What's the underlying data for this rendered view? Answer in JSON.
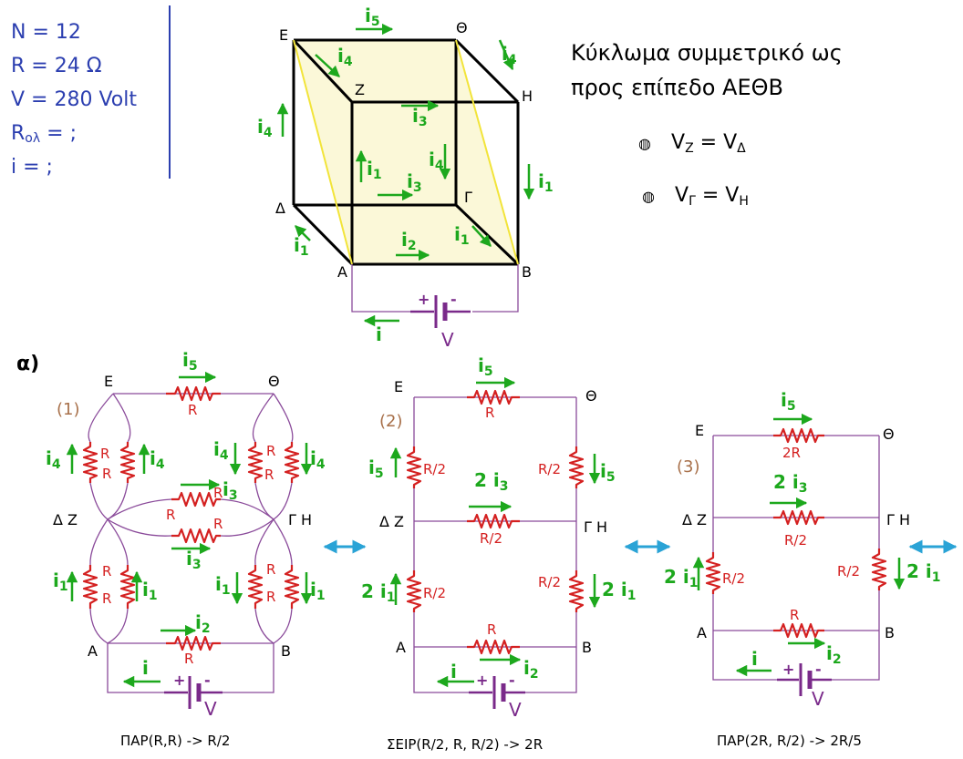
{
  "given": {
    "n": "N = 12",
    "r": "R = 24 Ω",
    "v": "V = 280 Volt",
    "rol_prefix": "R",
    "rol_sub": "ολ",
    "rol_suffix": " = ;",
    "i": "i = ;"
  },
  "symmetry": {
    "line1": "Κύκλωμα συμμετρικό ως",
    "line2": "προς επίπεδο ΑΕΘΒ",
    "eq1": {
      "a": "V",
      "a_sub": "Z",
      "mid": " = V",
      "b_sub": "Δ"
    },
    "eq2": {
      "a": "V",
      "a_sub": "Γ",
      "mid": " = V",
      "b_sub": "Η"
    },
    "bullet": "◍"
  },
  "labels": {
    "A": "Α",
    "B": "Β",
    "G": "Γ",
    "D": "Δ",
    "E": "Ε",
    "Z": "Ζ",
    "H": "Η",
    "TH": "Θ",
    "DZ": "Δ Ζ",
    "GH": "Γ Η",
    "i": "i",
    "i1": "1",
    "i2": "2",
    "i3": "3",
    "i4": "4",
    "i5": "5",
    "R": "R",
    "R2": "R/2",
    "twoR": "2R",
    "two": "2",
    "V": "V",
    "plus": "+",
    "minus": "-",
    "part_a": "α)"
  },
  "steps": {
    "s1": "(1)",
    "s2": "(2)",
    "s3": "(3)",
    "c1": "ΠΑΡ(R,R) -> R/2",
    "c2": "ΣΕΙΡ(R/2, R, R/2) -> 2R",
    "c3": "ΠΑΡ(2R, R/2) -> 2R/5"
  },
  "colors": {
    "given_text": "#2c3fb0",
    "arrow": "#1da81d",
    "resistor": "#d42020",
    "wire": "#8a4a9a",
    "step_label": "#a8704a",
    "equiv_arrow": "#2aa3d6",
    "battery": "#7a2a8a",
    "face": "#fbf8d8",
    "diag": "#f2e43a"
  }
}
